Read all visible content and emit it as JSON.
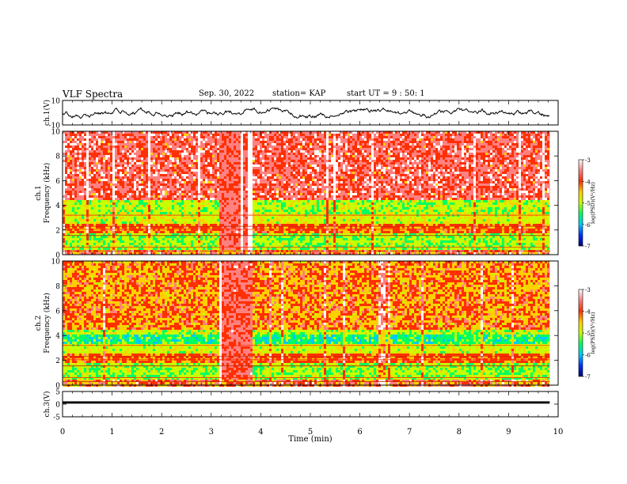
{
  "header": {
    "title": "VLF Spectra",
    "date": "Sep. 30, 2022",
    "station": "station= KAP",
    "start": "start UT =  9 : 50: 1"
  },
  "colors": {
    "colormap": [
      "#00007a",
      "#0030ff",
      "#00c8ff",
      "#00ff60",
      "#c8ff00",
      "#ffd000",
      "#ff3000",
      "#ff8080",
      "#ffffff"
    ],
    "trace": "#000000",
    "axis": "#000000"
  },
  "chart_data": [
    {
      "type": "line",
      "name": "ch1-waveform",
      "ylabel": "ch.1(V)",
      "ylim": [
        -10,
        10
      ],
      "yticks": [
        "10",
        "-10"
      ],
      "xlim": [
        0,
        10
      ],
      "description_only": false
    },
    {
      "type": "heatmap",
      "name": "ch1-spectrogram",
      "ylabel_line1": "ch.1",
      "ylabel_line2": "Frequency (kHz)",
      "ylim": [
        0,
        10
      ],
      "yticks": [
        "0",
        "2",
        "4",
        "6",
        "8",
        "10"
      ],
      "xlim": [
        0,
        10
      ],
      "data_extent_min": 9.83,
      "colorbar": {
        "ticks": [
          "-3",
          "-4",
          "-5",
          "-6",
          "-7"
        ],
        "range": [
          -7,
          -3
        ],
        "label": "log(PSD)(V²/Hz)"
      }
    },
    {
      "type": "heatmap",
      "name": "ch2-spectrogram",
      "ylabel_line1": "ch.2",
      "ylabel_line2": "Frequency (kHz)",
      "ylim": [
        0,
        10
      ],
      "yticks": [
        "0",
        "2",
        "4",
        "6",
        "8",
        "10"
      ],
      "xlim": [
        0,
        10
      ],
      "data_extent_min": 9.83,
      "colorbar": {
        "ticks": [
          "-3",
          "-4",
          "-5",
          "-6",
          "-7"
        ],
        "range": [
          -7,
          -3
        ],
        "label": "log(PSD)(V²/Hz)"
      }
    },
    {
      "type": "line",
      "name": "ch3-waveform",
      "ylabel": "ch.3(V)",
      "ylim": [
        -5,
        5
      ],
      "yticks": [
        "5",
        "0",
        "-5"
      ],
      "xlim": [
        0,
        10
      ],
      "xlabel": "Time (min)",
      "xticks": [
        "0",
        "1",
        "2",
        "3",
        "4",
        "5",
        "6",
        "7",
        "8",
        "9",
        "10"
      ]
    }
  ]
}
